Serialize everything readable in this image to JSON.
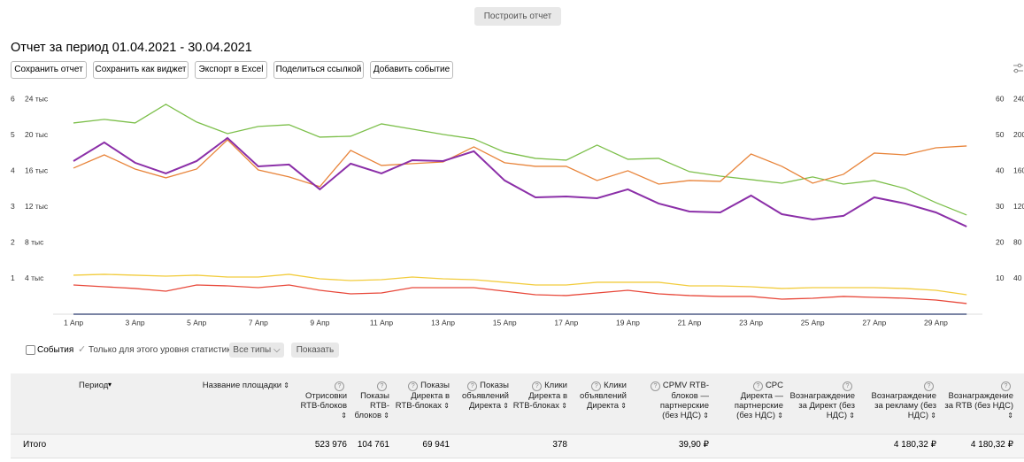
{
  "toolbar": {
    "build_button": "Построить отчет"
  },
  "report": {
    "title": "Отчет за период 01.04.2021 - 30.04.2021",
    "buttons": [
      "Сохранить отчет",
      "Сохранить как виджет",
      "Экспорт в Excel",
      "Поделиться ссылкой",
      "Добавить событие"
    ]
  },
  "chart_data": {
    "type": "line",
    "categories": [
      "1 Апр",
      null,
      "3 Апр",
      null,
      "5 Апр",
      null,
      "7 Апр",
      null,
      "9 Апр",
      null,
      "11 Апр",
      null,
      "13 Апр",
      null,
      "15 Апр",
      null,
      "17 Апр",
      null,
      "19 Апр",
      null,
      "21 Апр",
      null,
      "23 Апр",
      null,
      "25 Апр",
      null,
      "27 Апр",
      null,
      "29 Апр",
      null
    ],
    "ylim": [
      0,
      6
    ],
    "yticks": [
      1,
      2,
      3,
      4,
      5,
      6
    ],
    "y2lim": [
      0,
      24000
    ],
    "y2ticks": [
      {
        "value": 4000,
        "label": "4 тыс"
      },
      {
        "value": 8000,
        "label": "8 тыс"
      },
      {
        "value": 12000,
        "label": "12 тыс"
      },
      {
        "value": 16000,
        "label": "16 тыс"
      },
      {
        "value": 20000,
        "label": "20 тыс"
      },
      {
        "value": 24000,
        "label": "24 тыс"
      }
    ],
    "y3lim": [
      0,
      60
    ],
    "y3ticks": [
      10,
      20,
      30,
      40,
      50,
      60
    ],
    "y4lim": [
      0,
      240
    ],
    "y4ticks": [
      40,
      80,
      120,
      160,
      200,
      240
    ],
    "series": [
      {
        "color": "#7cbf4a",
        "axis": "y2",
        "values": [
          21340,
          21740,
          21340,
          23420,
          21440,
          20150,
          20950,
          21140,
          19760,
          19860,
          21240,
          20650,
          20060,
          19560,
          18080,
          17390,
          17190,
          18870,
          17290,
          17390,
          15910,
          15410,
          15020,
          14620,
          15320,
          14520,
          14920,
          14030,
          12450,
          11070
        ]
      },
      {
        "color": "#e8843a",
        "axis": "y2",
        "values": [
          16300,
          17780,
          16200,
          15220,
          16200,
          19460,
          16100,
          15320,
          14230,
          18280,
          16600,
          16800,
          16990,
          18670,
          16900,
          16500,
          16500,
          14920,
          16010,
          14520,
          14920,
          14820,
          17880,
          16500,
          14620,
          15610,
          17980,
          17780,
          18570,
          18770
        ]
      },
      {
        "color": "#8b2fa8",
        "axis": "y2",
        "values": [
          17090,
          19170,
          16900,
          15710,
          17090,
          19660,
          16500,
          16700,
          13930,
          16800,
          15710,
          17190,
          17090,
          18180,
          14920,
          13040,
          13140,
          12940,
          13930,
          12350,
          11460,
          11360,
          13240,
          11160,
          10570,
          10970,
          13040,
          12350,
          11360,
          9780
        ]
      },
      {
        "color": "#f2cc3d",
        "axis": "y2",
        "values": [
          4350,
          4450,
          4350,
          4250,
          4350,
          4150,
          4150,
          4450,
          3950,
          3750,
          3850,
          4150,
          3950,
          3850,
          3560,
          3260,
          3260,
          3560,
          3560,
          3560,
          3160,
          3160,
          3060,
          2870,
          2960,
          2960,
          2960,
          2870,
          2670,
          2170
        ]
      },
      {
        "color": "#e8483a",
        "axis": "y2",
        "values": [
          3260,
          3060,
          2870,
          2570,
          3260,
          3160,
          2960,
          3260,
          2670,
          2270,
          2370,
          2960,
          2960,
          2960,
          2570,
          2170,
          2080,
          2370,
          2670,
          2270,
          2080,
          1980,
          1980,
          1680,
          1780,
          1980,
          1880,
          1780,
          1580,
          1190
        ]
      },
      {
        "color": "#2a3a6e",
        "axis": "y2",
        "values": [
          0,
          0,
          0,
          0,
          0,
          0,
          0,
          0,
          0,
          0,
          0,
          0,
          0,
          0,
          0,
          0,
          0,
          0,
          0,
          0,
          0,
          0,
          0,
          0,
          0,
          0,
          0,
          0,
          0,
          0
        ]
      }
    ]
  },
  "filters": {
    "events": "События",
    "level_only": "Только для этого уровня статистики",
    "type_select": "Все типы",
    "show_button": "Показать"
  },
  "table": {
    "columns": [
      "Период",
      "Название площадки",
      "Отрисовки RTB-блоков",
      "Показы RTB-блоков",
      "Показы Директа в RTB-блоках",
      "Показы объявлений Директа",
      "Клики Директа в RTB-блоках",
      "Клики объявлений Директа",
      "CPMV RTB-блоков — партнерские (без НДС)",
      "CPC Директа — партнерские (без НДС)",
      "Вознаграждение за Директ (без НДС)",
      "Вознаграждение за рекламу (без НДС)",
      "Вознаграждение за RTB (без НДС)"
    ],
    "rows": [
      [
        "Итого",
        null,
        "523 976",
        "104 761",
        "69 941",
        null,
        "378",
        null,
        "39,90 ₽",
        null,
        null,
        "4 180,32 ₽",
        "4 180,32 ₽"
      ]
    ]
  }
}
